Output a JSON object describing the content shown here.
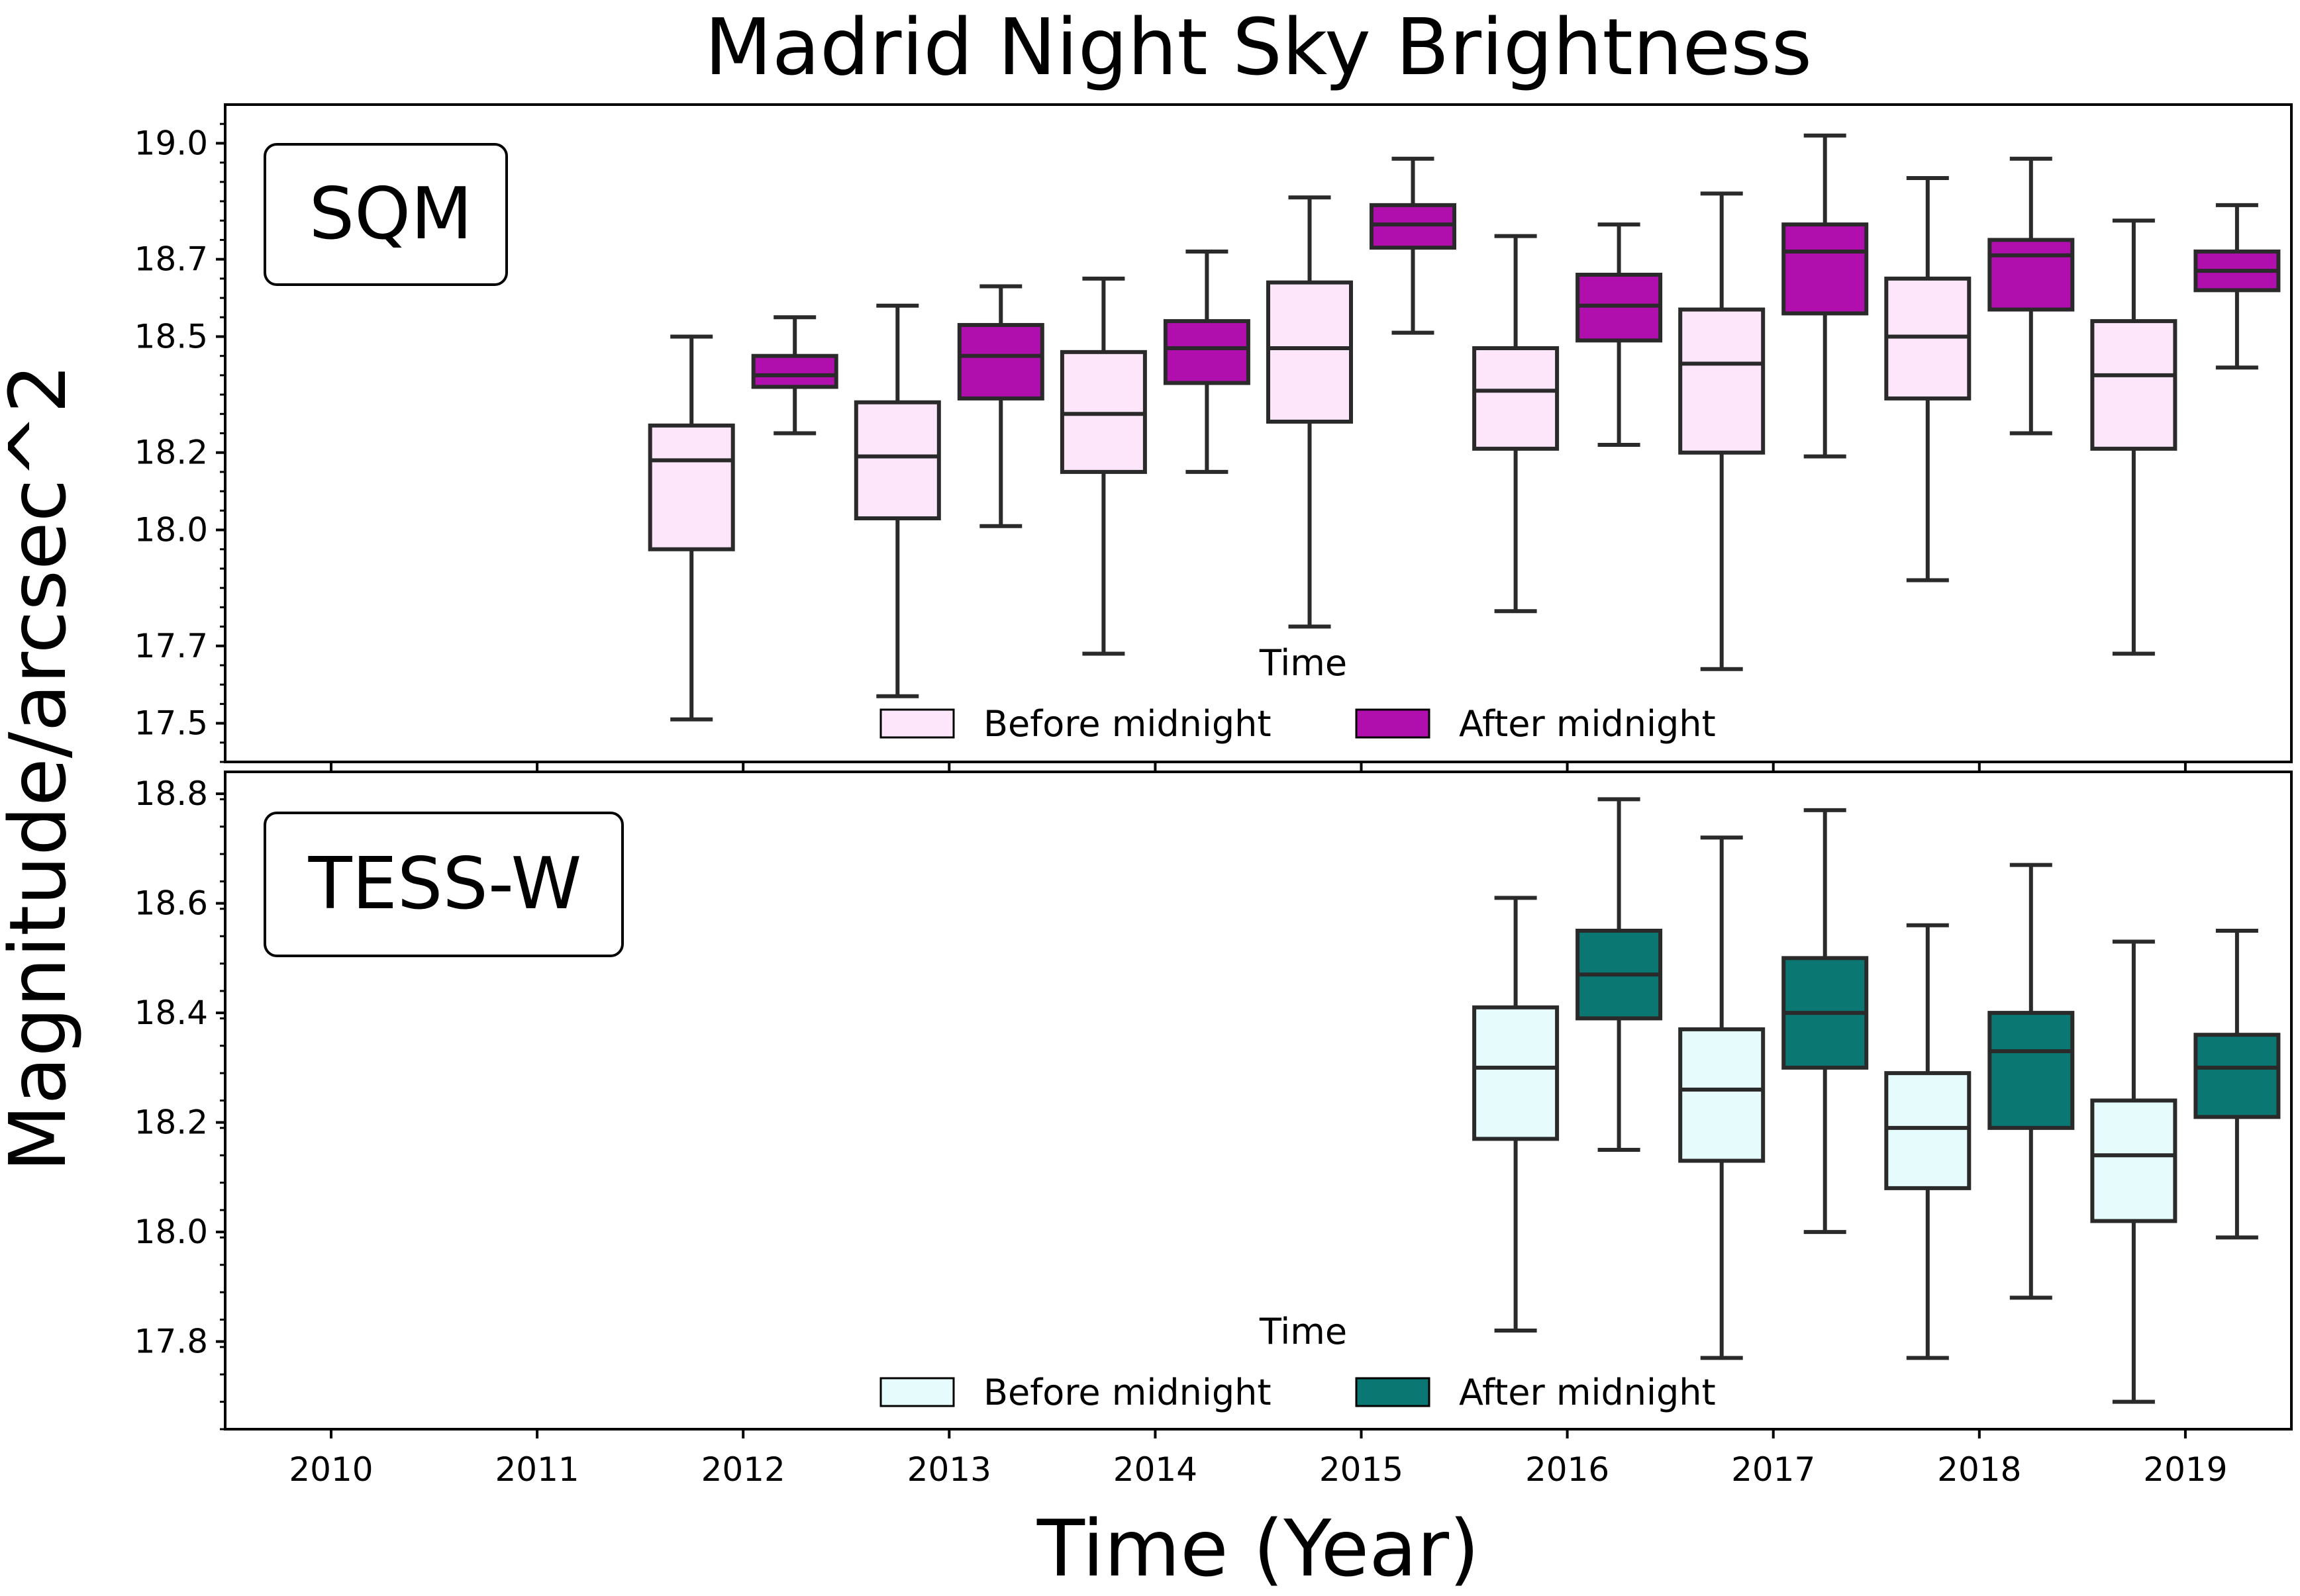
{
  "chart_data": [
    {
      "type": "box",
      "title": "Madrid Night Sky Brightness",
      "xlabel": "Time (Year)",
      "ylabel": "Magnitude/arcsec^2",
      "panel_label": "SQM",
      "categories": [
        "2010",
        "2011",
        "2012",
        "2013",
        "2014",
        "2015",
        "2016",
        "2017",
        "2018",
        "2019"
      ],
      "ylim": [
        17.4,
        19.1
      ],
      "yticks": [
        17.5,
        17.7,
        18.0,
        18.2,
        18.5,
        18.7,
        19.0
      ],
      "ytick_labels": [
        "17.5",
        "17.7",
        "18.0",
        "18.2",
        "18.5",
        "18.7",
        "19.0"
      ],
      "legend": {
        "title": "Time",
        "entries": [
          "Before midnight",
          "After midnight"
        ],
        "position": "lower-center"
      },
      "series": [
        {
          "name": "Before midnight",
          "color": "#fde6fa",
          "boxes": [
            null,
            null,
            {
              "low": 17.51,
              "q1": 17.95,
              "median": 18.18,
              "q3": 18.27,
              "high": 18.5
            },
            {
              "low": 17.57,
              "q1": 18.03,
              "median": 18.19,
              "q3": 18.33,
              "high": 18.58
            },
            {
              "low": 17.68,
              "q1": 18.15,
              "median": 18.3,
              "q3": 18.46,
              "high": 18.65
            },
            {
              "low": 17.75,
              "q1": 18.28,
              "median": 18.47,
              "q3": 18.64,
              "high": 18.86
            },
            {
              "low": 17.79,
              "q1": 18.21,
              "median": 18.36,
              "q3": 18.47,
              "high": 18.76
            },
            {
              "low": 17.64,
              "q1": 18.2,
              "median": 18.43,
              "q3": 18.57,
              "high": 18.87
            },
            {
              "low": 17.87,
              "q1": 18.34,
              "median": 18.5,
              "q3": 18.65,
              "high": 18.91
            },
            {
              "low": 17.68,
              "q1": 18.21,
              "median": 18.4,
              "q3": 18.54,
              "high": 18.8
            }
          ]
        },
        {
          "name": "After midnight",
          "color": "#b00fae",
          "boxes": [
            null,
            null,
            {
              "low": 18.25,
              "q1": 18.37,
              "median": 18.4,
              "q3": 18.45,
              "high": 18.55
            },
            {
              "low": 18.01,
              "q1": 18.34,
              "median": 18.45,
              "q3": 18.53,
              "high": 18.63
            },
            {
              "low": 18.15,
              "q1": 18.38,
              "median": 18.47,
              "q3": 18.54,
              "high": 18.72
            },
            {
              "low": 18.51,
              "q1": 18.73,
              "median": 18.79,
              "q3": 18.84,
              "high": 18.96
            },
            {
              "low": 18.22,
              "q1": 18.49,
              "median": 18.58,
              "q3": 18.66,
              "high": 18.79
            },
            {
              "low": 18.19,
              "q1": 18.56,
              "median": 18.72,
              "q3": 18.79,
              "high": 19.02
            },
            {
              "low": 18.25,
              "q1": 18.57,
              "median": 18.71,
              "q3": 18.75,
              "high": 18.96
            },
            {
              "low": 18.42,
              "q1": 18.62,
              "median": 18.67,
              "q3": 18.72,
              "high": 18.84
            }
          ]
        }
      ]
    },
    {
      "type": "box",
      "panel_label": "TESS-W",
      "categories": [
        "2010",
        "2011",
        "2012",
        "2013",
        "2014",
        "2015",
        "2016",
        "2017",
        "2018",
        "2019"
      ],
      "ylim": [
        17.64,
        18.84
      ],
      "yticks": [
        17.8,
        18.0,
        18.2,
        18.4,
        18.6,
        18.8
      ],
      "ytick_labels": [
        "17.8",
        "18.0",
        "18.2",
        "18.4",
        "18.6",
        "18.8"
      ],
      "legend": {
        "title": "Time",
        "entries": [
          "Before midnight",
          "After midnight"
        ],
        "position": "lower-center"
      },
      "series": [
        {
          "name": "Before midnight",
          "color": "#e6fcfc",
          "boxes": [
            null,
            null,
            null,
            null,
            null,
            null,
            {
              "low": 17.82,
              "q1": 18.17,
              "median": 18.3,
              "q3": 18.41,
              "high": 18.61
            },
            {
              "low": 17.77,
              "q1": 18.13,
              "median": 18.26,
              "q3": 18.37,
              "high": 18.72
            },
            {
              "low": 17.77,
              "q1": 18.08,
              "median": 18.19,
              "q3": 18.29,
              "high": 18.56
            },
            {
              "low": 17.69,
              "q1": 18.02,
              "median": 18.14,
              "q3": 18.24,
              "high": 18.53
            }
          ]
        },
        {
          "name": "After midnight",
          "color": "#0a7773",
          "boxes": [
            null,
            null,
            null,
            null,
            null,
            null,
            {
              "low": 18.15,
              "q1": 18.39,
              "median": 18.47,
              "q3": 18.55,
              "high": 18.79
            },
            {
              "low": 18.0,
              "q1": 18.3,
              "median": 18.4,
              "q3": 18.5,
              "high": 18.77
            },
            {
              "low": 17.88,
              "q1": 18.19,
              "median": 18.33,
              "q3": 18.4,
              "high": 18.67
            },
            {
              "low": 17.99,
              "q1": 18.21,
              "median": 18.3,
              "q3": 18.36,
              "high": 18.55
            }
          ]
        }
      ]
    }
  ]
}
